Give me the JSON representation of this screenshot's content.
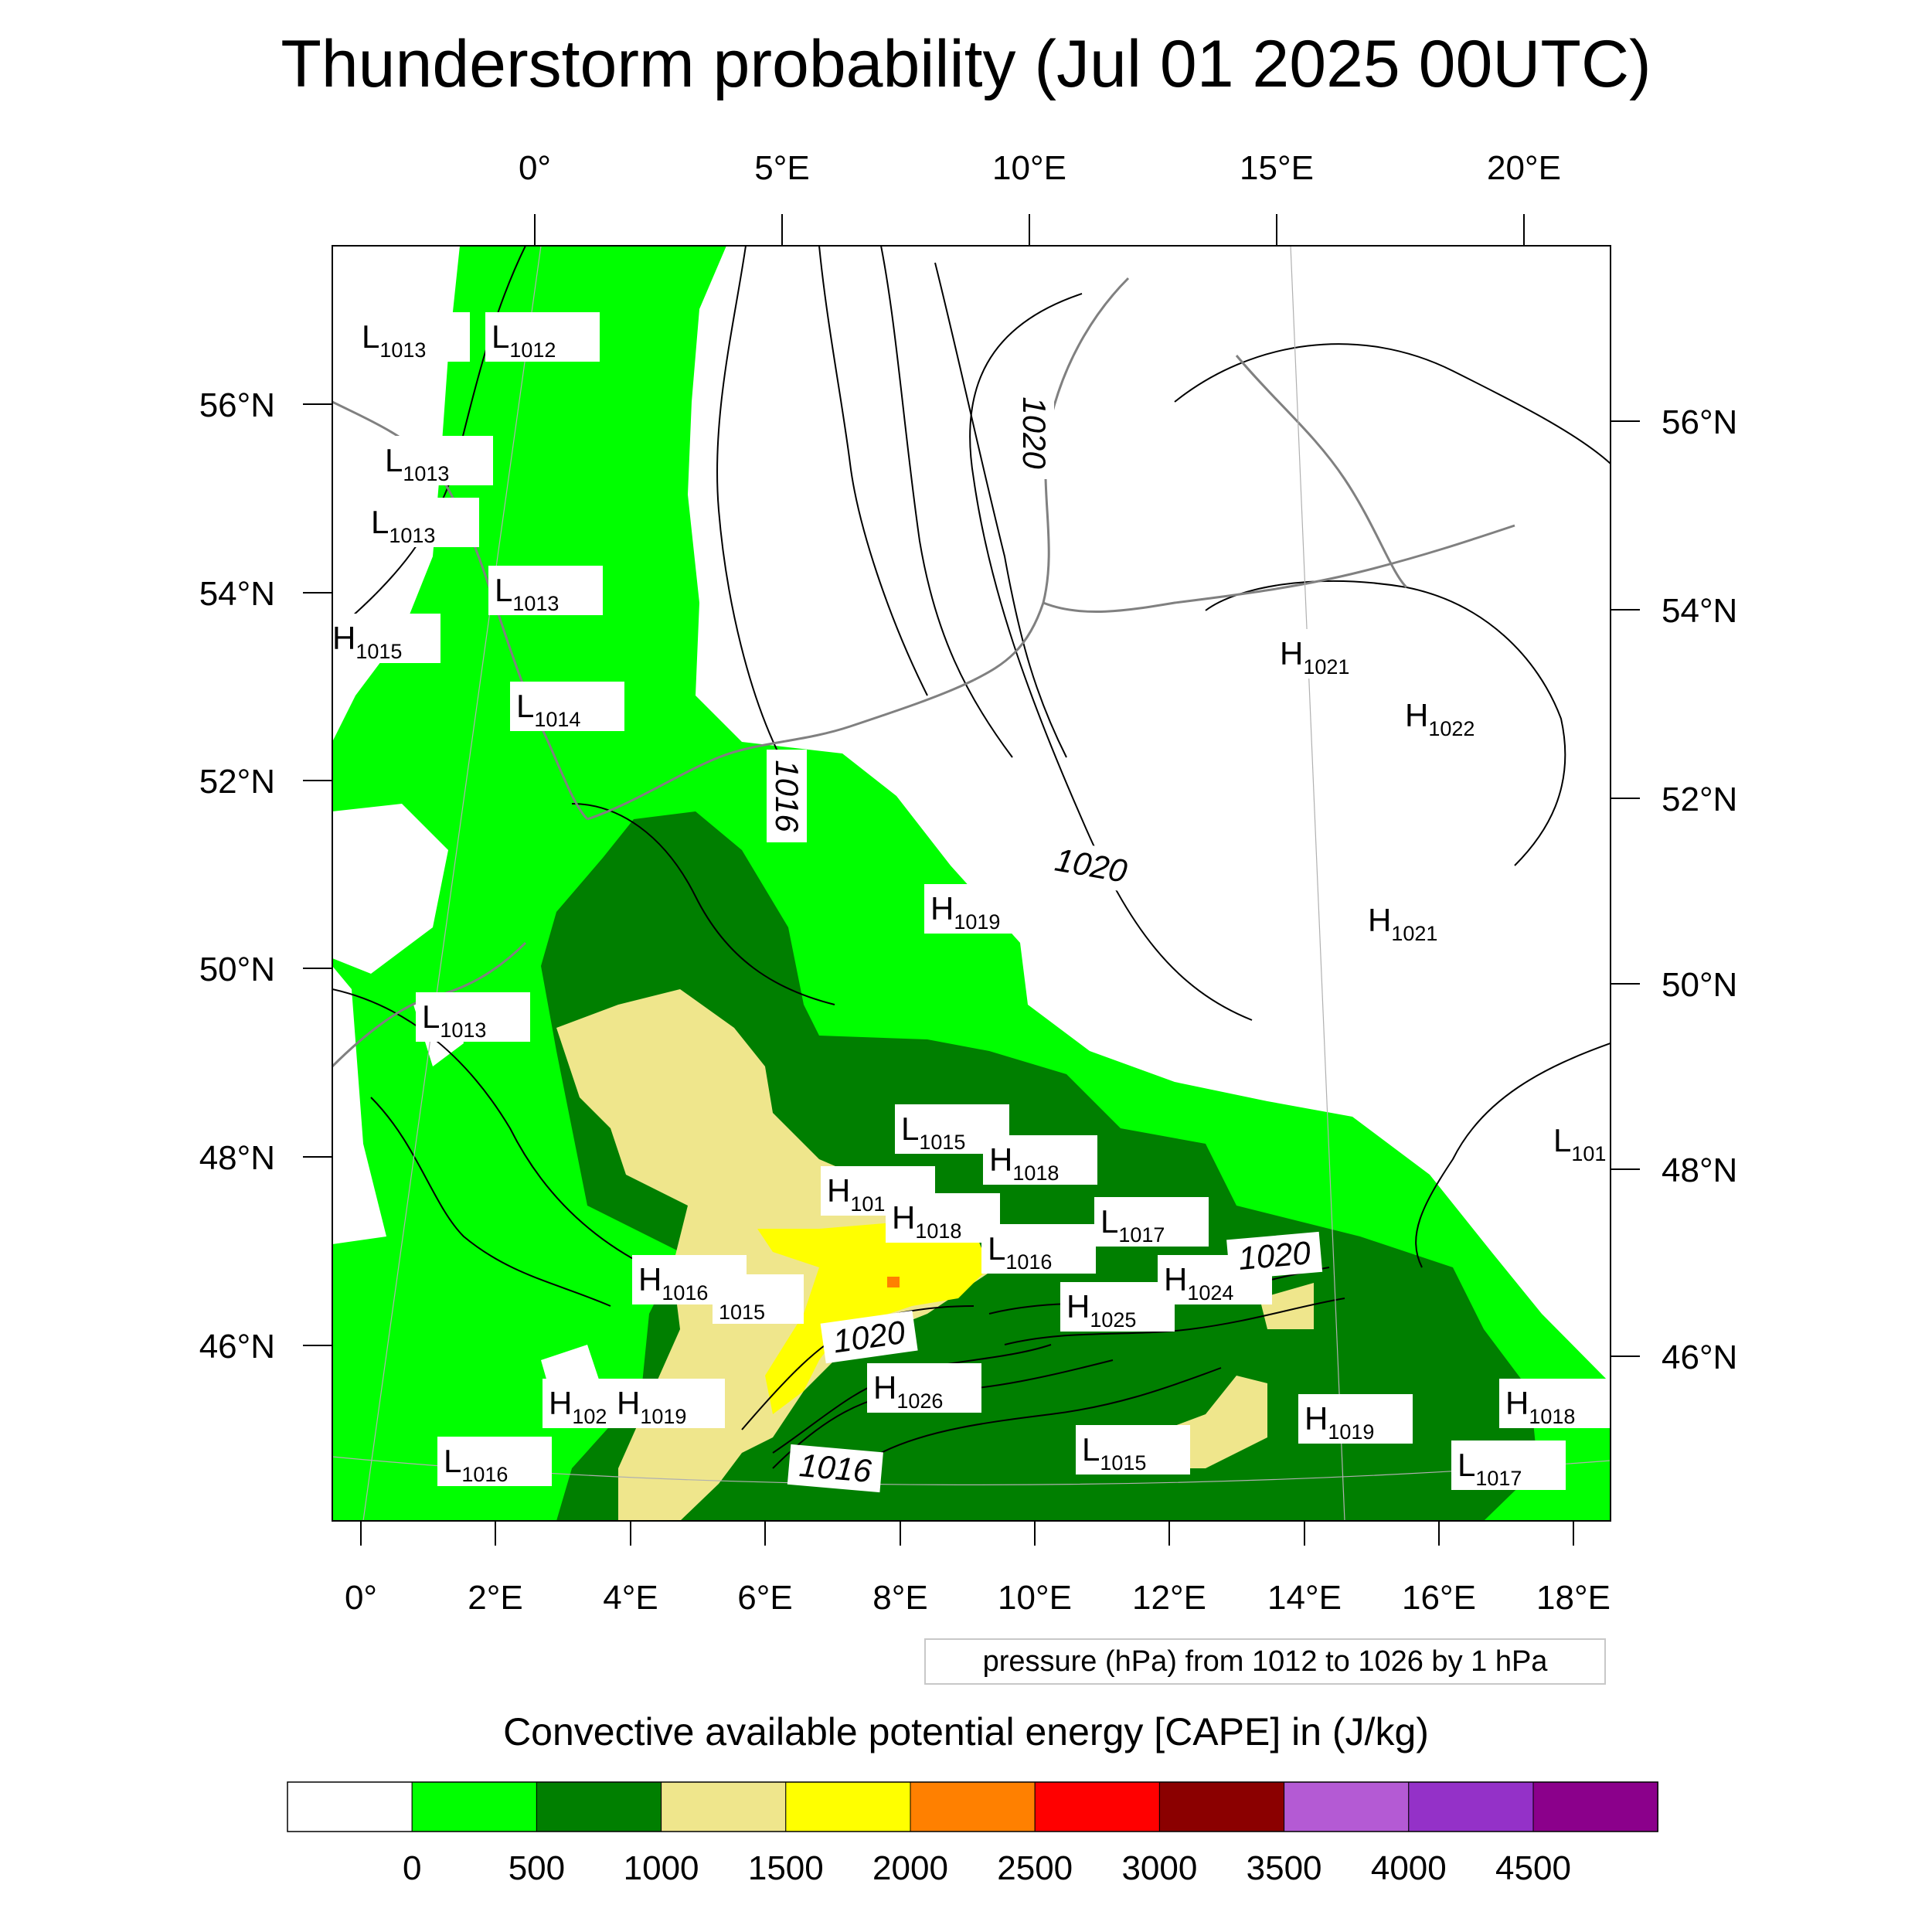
{
  "title": "Thunderstorm probability (Jul 01 2025 00UTC)",
  "top_axis_labels": [
    "0°",
    "5°E",
    "10°E",
    "15°E",
    "20°E"
  ],
  "bottom_axis_labels": [
    "0°",
    "2°E",
    "4°E",
    "6°E",
    "8°E",
    "10°E",
    "12°E",
    "14°E",
    "16°E",
    "18°E"
  ],
  "left_axis_labels": [
    "56°N",
    "54°N",
    "52°N",
    "50°N",
    "48°N",
    "46°N"
  ],
  "right_axis_labels": [
    "56°N",
    "54°N",
    "52°N",
    "50°N",
    "48°N",
    "46°N"
  ],
  "pressure_centers": [
    {
      "letter": "L",
      "value": "1013"
    },
    {
      "letter": "L",
      "value": "1012"
    },
    {
      "letter": "L",
      "value": "1013"
    },
    {
      "letter": "L",
      "value": "1013"
    },
    {
      "letter": "L",
      "value": "1013"
    },
    {
      "letter": "H",
      "value": "1015"
    },
    {
      "letter": "L",
      "value": "1014"
    },
    {
      "letter": "L",
      "value": "1013"
    },
    {
      "letter": "H",
      "value": "1019"
    },
    {
      "letter": "H",
      "value": "1021"
    },
    {
      "letter": "H",
      "value": "1022"
    },
    {
      "letter": "H",
      "value": "1021"
    },
    {
      "letter": "L",
      "value": "1015"
    },
    {
      "letter": "H",
      "value": "1018"
    },
    {
      "letter": "H",
      "value": "1018"
    },
    {
      "letter": "H",
      "value": "1018"
    },
    {
      "letter": "L",
      "value": "1017"
    },
    {
      "letter": "L",
      "value": "1016"
    },
    {
      "letter": "H",
      "value": "1016"
    },
    {
      "letter": "",
      "value": "1015"
    },
    {
      "letter": "H",
      "value": "1025"
    },
    {
      "letter": "H",
      "value": "1024"
    },
    {
      "letter": "H",
      "value": "1026"
    },
    {
      "letter": "H",
      "value": "102"
    },
    {
      "letter": "H",
      "value": "1019"
    },
    {
      "letter": "L",
      "value": "1016"
    },
    {
      "letter": "L",
      "value": "1015"
    },
    {
      "letter": "H",
      "value": "1019"
    },
    {
      "letter": "H",
      "value": "1018"
    },
    {
      "letter": "L",
      "value": "1017"
    },
    {
      "letter": "L",
      "value": "101"
    }
  ],
  "isobar_labels": [
    "1020",
    "1016",
    "1020",
    "1020",
    "1020",
    "1016"
  ],
  "info_text": "pressure (hPa) from 1012 to 1026 by 1 hPa",
  "colorbar": {
    "title": "Convective available potential energy [CAPE] in (J/kg)",
    "colors": [
      "#ffffff",
      "#00ff00",
      "#007f00",
      "#efe68c",
      "#ffff00",
      "#ff8000",
      "#ff0000",
      "#8b0000",
      "#b45ad4",
      "#9431c8",
      "#8b008b"
    ],
    "tick_labels": [
      "0",
      "500",
      "1000",
      "1500",
      "2000",
      "2500",
      "3000",
      "3500",
      "4000",
      "4500"
    ]
  }
}
